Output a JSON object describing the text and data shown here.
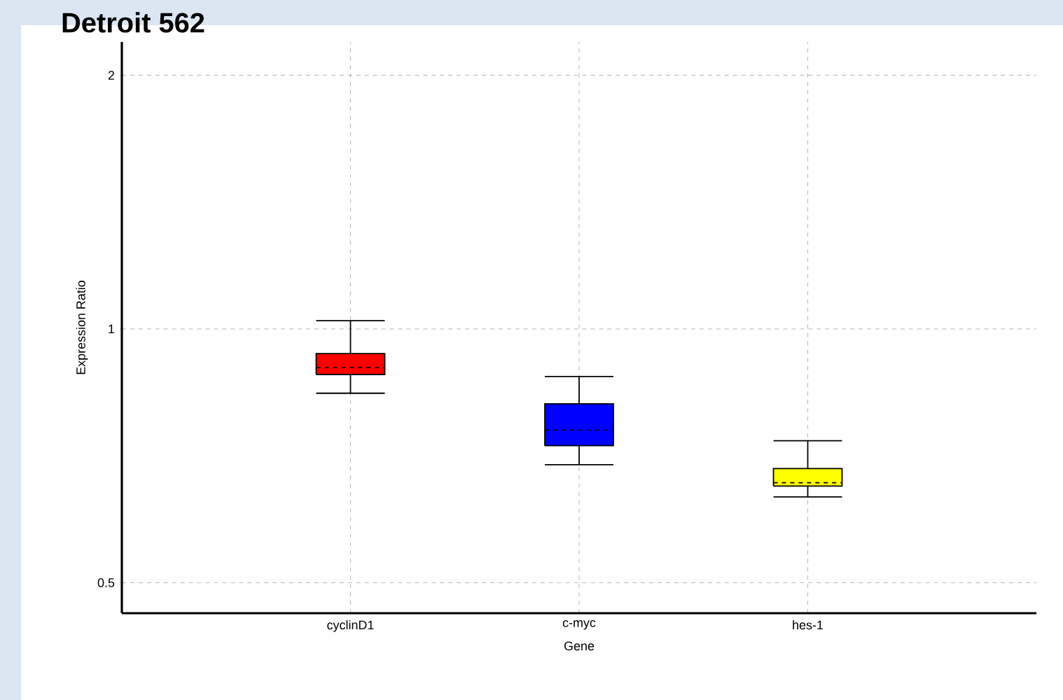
{
  "chart_data": {
    "type": "box",
    "title": "Detroit 562",
    "xlabel": "Gene",
    "ylabel": "Expression Ratio",
    "categories": [
      "cyclinD1",
      "c-myc",
      "hes-1"
    ],
    "colors": [
      "#ff0000",
      "#0000ff",
      "#ffff00"
    ],
    "boxes": [
      {
        "low": 0.839,
        "q1": 0.883,
        "median": 0.9,
        "q3": 0.935,
        "high": 1.023
      },
      {
        "low": 0.69,
        "q1": 0.727,
        "median": 0.759,
        "q3": 0.815,
        "high": 0.878
      },
      {
        "low": 0.632,
        "q1": 0.651,
        "median": 0.657,
        "q3": 0.683,
        "high": 0.737
      }
    ],
    "log": "y",
    "ylim": [
      0.46,
      2.19
    ],
    "yticks": [
      0.5,
      1,
      2
    ],
    "grid": true
  }
}
